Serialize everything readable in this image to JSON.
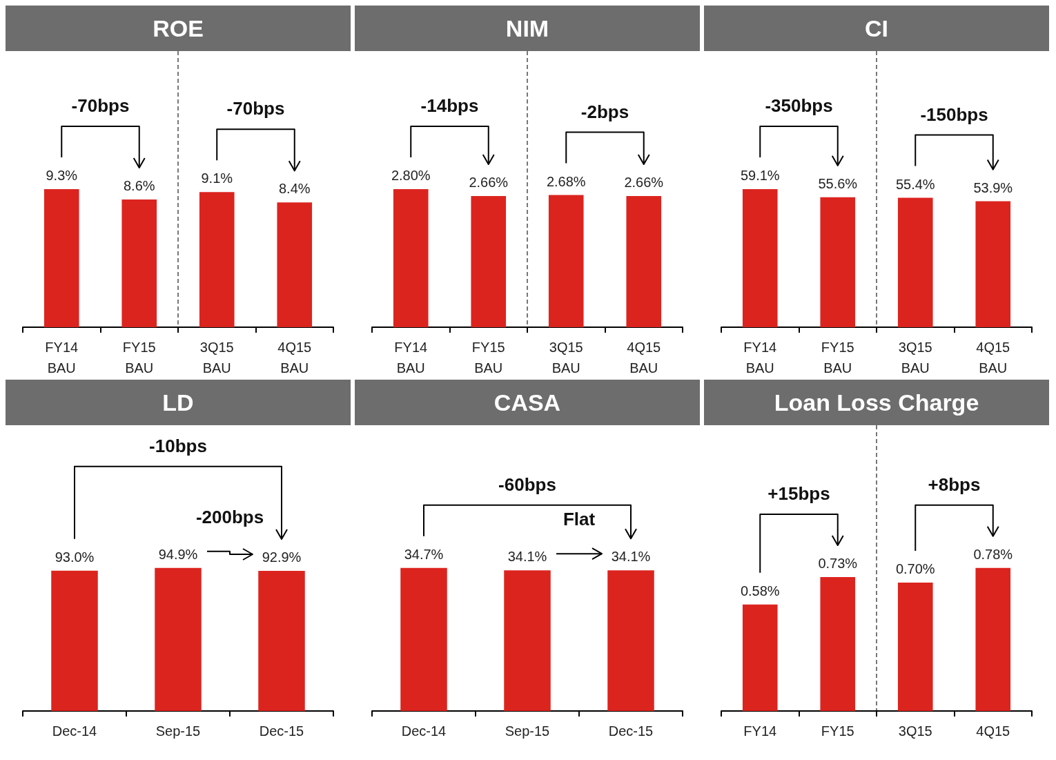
{
  "chart_data": [
    {
      "type": "bar",
      "title": "ROE",
      "categories": [
        "FY14\nBAU",
        "FY15\nBAU",
        "3Q15\nBAU",
        "4Q15\nBAU"
      ],
      "values": [
        9.3,
        8.6,
        9.1,
        8.4
      ],
      "value_labels": [
        "9.3%",
        "8.6%",
        "9.1%",
        "8.4%"
      ],
      "color": "#dc241f",
      "annotations": [
        "-70bps",
        "-70bps"
      ]
    },
    {
      "type": "bar",
      "title": "NIM",
      "categories": [
        "FY14\nBAU",
        "FY15\nBAU",
        "3Q15\nBAU",
        "4Q15\nBAU"
      ],
      "values": [
        2.8,
        2.66,
        2.68,
        2.66
      ],
      "value_labels": [
        "2.80%",
        "2.66%",
        "2.68%",
        "2.66%"
      ],
      "color": "#dc241f",
      "annotations": [
        "-14bps",
        "-2bps"
      ]
    },
    {
      "type": "bar",
      "title": "CI",
      "categories": [
        "FY14\nBAU",
        "FY15\nBAU",
        "3Q15\nBAU",
        "4Q15\nBAU"
      ],
      "values": [
        59.1,
        55.6,
        55.4,
        53.9
      ],
      "value_labels": [
        "59.1%",
        "55.6%",
        "55.4%",
        "53.9%"
      ],
      "color": "#dc241f",
      "annotations": [
        "-350bps",
        "-150bps"
      ]
    },
    {
      "type": "bar",
      "title": "LD",
      "categories": [
        "Dec-14",
        "Sep-15",
        "Dec-15"
      ],
      "values": [
        93.0,
        94.9,
        92.9
      ],
      "value_labels": [
        "93.0%",
        "94.9%",
        "92.9%"
      ],
      "color": "#dc241f",
      "annotations": [
        "-10bps",
        "-200bps"
      ]
    },
    {
      "type": "bar",
      "title": "CASA",
      "categories": [
        "Dec-14",
        "Sep-15",
        "Dec-15"
      ],
      "values": [
        34.7,
        34.1,
        34.1
      ],
      "value_labels": [
        "34.7%",
        "34.1%",
        "34.1%"
      ],
      "color": "#dc241f",
      "annotations": [
        "-60bps",
        "Flat"
      ]
    },
    {
      "type": "bar",
      "title": "Loan Loss Charge",
      "categories": [
        "FY14",
        "FY15",
        "3Q15",
        "4Q15"
      ],
      "values": [
        0.58,
        0.73,
        0.7,
        0.78
      ],
      "value_labels": [
        "0.58%",
        "0.73%",
        "0.70%",
        "0.78%"
      ],
      "color": "#dc241f",
      "annotations": [
        "+15bps",
        "+8bps"
      ]
    }
  ]
}
